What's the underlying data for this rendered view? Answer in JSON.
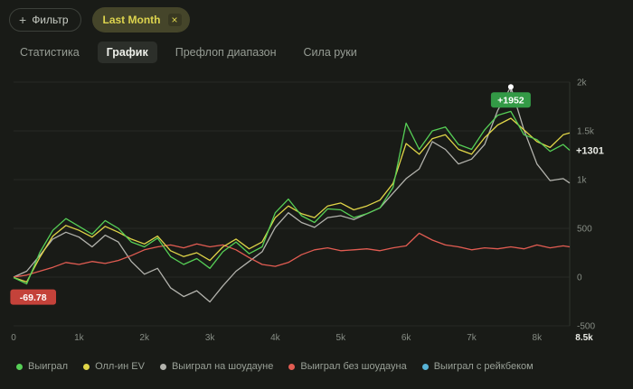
{
  "header": {
    "filter_button": {
      "label": "Фильтр",
      "plus_glyph": "+"
    },
    "active_filter": {
      "label": "Last Month",
      "close_glyph": "×"
    }
  },
  "tabs": {
    "items": [
      {
        "key": "statistics",
        "label": "Статистика",
        "active": false
      },
      {
        "key": "chart",
        "label": "График",
        "active": true
      },
      {
        "key": "preflop-range",
        "label": "Префлоп диапазон",
        "active": false
      },
      {
        "key": "hand-strength",
        "label": "Сила руки",
        "active": false
      }
    ]
  },
  "theme": {
    "background": "#191b17",
    "grid_line": "#262a24",
    "axis_line": "#2f342d",
    "axis_text": "#868c84",
    "axis_text_bright": "#e9ebe5",
    "chip_bg": "#45452a",
    "chip_text": "#ddd44e",
    "tab_active_bg": "#2c2f2a",
    "badge_text": "#ffffff",
    "marker_dot": "#ffffff"
  },
  "chart_data": {
    "type": "line",
    "title": "",
    "xlabel": "",
    "ylabel": "",
    "x_max": 8500,
    "ylim": [
      -500,
      2000
    ],
    "grid": "horizontal",
    "legend_position": "bottom",
    "y_ticks": [
      {
        "value": 2000,
        "label": "2k"
      },
      {
        "value": 1500,
        "label": "1.5k"
      },
      {
        "value": 1000,
        "label": "1k"
      },
      {
        "value": 500,
        "label": "500"
      },
      {
        "value": 0,
        "label": "0"
      },
      {
        "value": -500,
        "label": "-500"
      }
    ],
    "x_ticks": [
      {
        "value": 0,
        "label": "0"
      },
      {
        "value": 1000,
        "label": "1k"
      },
      {
        "value": 2000,
        "label": "2k"
      },
      {
        "value": 3000,
        "label": "3k"
      },
      {
        "value": 4000,
        "label": "4k"
      },
      {
        "value": 5000,
        "label": "5k"
      },
      {
        "value": 6000,
        "label": "6k"
      },
      {
        "value": 7000,
        "label": "7k"
      },
      {
        "value": 8000,
        "label": "8k"
      },
      {
        "value": 8500,
        "label": "8.5k",
        "highlight": true
      }
    ],
    "x": [
      0,
      200,
      400,
      600,
      800,
      1000,
      1200,
      1400,
      1600,
      1800,
      2000,
      2200,
      2400,
      2600,
      2800,
      3000,
      3200,
      3400,
      3600,
      3800,
      4000,
      4200,
      4400,
      4600,
      4800,
      5000,
      5200,
      5400,
      5600,
      5800,
      6000,
      6200,
      6400,
      6600,
      6800,
      7000,
      7200,
      7400,
      7600,
      7800,
      8000,
      8200,
      8400,
      8500
    ],
    "series": [
      {
        "key": "won",
        "name": "Выиграл",
        "color": "#56cf56",
        "values": [
          -5,
          -70,
          250,
          480,
          600,
          520,
          440,
          580,
          500,
          360,
          310,
          400,
          210,
          130,
          190,
          90,
          260,
          360,
          240,
          310,
          660,
          800,
          630,
          560,
          700,
          690,
          610,
          650,
          710,
          920,
          1580,
          1310,
          1500,
          1540,
          1360,
          1310,
          1510,
          1660,
          1700,
          1460,
          1410,
          1290,
          1360,
          1301
        ]
      },
      {
        "key": "allin-ev",
        "name": "Олл-ин EV",
        "color": "#e0d548",
        "values": [
          -5,
          -50,
          200,
          420,
          530,
          480,
          410,
          520,
          460,
          390,
          340,
          420,
          270,
          210,
          250,
          170,
          310,
          390,
          290,
          360,
          610,
          730,
          650,
          610,
          730,
          760,
          690,
          730,
          790,
          960,
          1370,
          1260,
          1420,
          1460,
          1310,
          1260,
          1430,
          1560,
          1630,
          1510,
          1390,
          1330,
          1460,
          1480
        ]
      },
      {
        "key": "won-showdown",
        "name": "Выиграл на шоудауне",
        "color": "#b3b3ad",
        "values": [
          0,
          60,
          220,
          390,
          460,
          410,
          310,
          430,
          360,
          160,
          30,
          90,
          -110,
          -200,
          -140,
          -255,
          -90,
          60,
          160,
          260,
          510,
          660,
          560,
          510,
          610,
          630,
          590,
          650,
          710,
          860,
          1010,
          1110,
          1390,
          1310,
          1160,
          1210,
          1360,
          1710,
          1952,
          1510,
          1160,
          990,
          1010,
          965
        ]
      },
      {
        "key": "won-nonshowdown",
        "name": "Выиграл без шоудауна",
        "color": "#e25c52",
        "values": [
          0,
          20,
          60,
          100,
          150,
          130,
          160,
          140,
          170,
          220,
          280,
          310,
          330,
          300,
          340,
          310,
          330,
          280,
          200,
          130,
          110,
          150,
          230,
          280,
          300,
          270,
          280,
          290,
          270,
          300,
          320,
          450,
          380,
          330,
          310,
          280,
          300,
          290,
          310,
          290,
          330,
          300,
          320,
          310
        ]
      },
      {
        "key": "won-rakeback",
        "name": "Выиграл с рейкбеком",
        "color": "#57b3d6",
        "values": []
      }
    ],
    "annotations": {
      "peak": {
        "text": "+1952",
        "x": 7600,
        "y": 1952,
        "color": "#339a46"
      },
      "min": {
        "text": "-69.78",
        "x": 300,
        "y": -70,
        "color": "#c4423a"
      },
      "current": {
        "text": "+1301",
        "y": 1301
      }
    }
  }
}
